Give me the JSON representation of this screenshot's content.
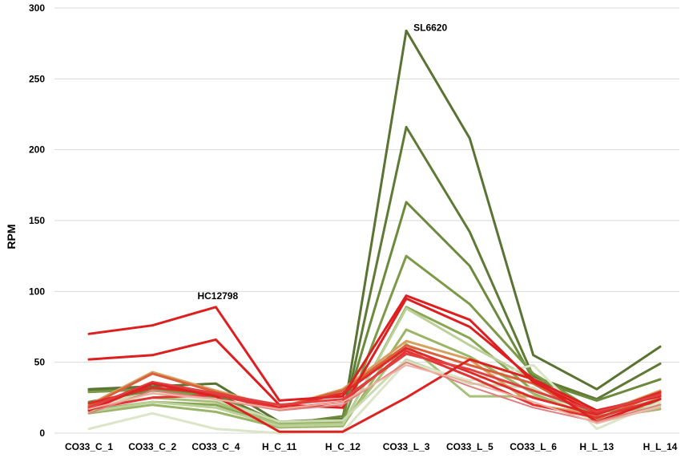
{
  "chart_data": {
    "type": "line",
    "ylabel": "RPM",
    "xlabel": "",
    "ylim": [
      0,
      300
    ],
    "yticks": [
      0,
      50,
      100,
      150,
      200,
      250,
      300
    ],
    "grid": true,
    "legend": "none",
    "categories": [
      "CO33_C_1",
      "CO33_C_2",
      "CO33_C_4",
      "H_C_11",
      "H_C_12",
      "CO33_L_3",
      "CO33_L_5",
      "CO33_L_6",
      "H_L_13",
      "H_L_14"
    ],
    "annotations": [
      {
        "text": "SL6620",
        "category": "CO33_L_3",
        "y": 284
      },
      {
        "text": "HC12798",
        "category": "CO33_C_4",
        "y": 89
      }
    ],
    "series": [
      {
        "color": "#5a7332",
        "width": 3,
        "values": [
          31,
          33,
          35,
          8,
          10,
          284,
          208,
          55,
          31,
          61
        ]
      },
      {
        "color": "#5f7a35",
        "width": 3,
        "values": [
          30,
          32,
          28,
          7,
          9,
          216,
          142,
          40,
          24,
          49
        ]
      },
      {
        "color": "#6b8a3c",
        "width": 3,
        "values": [
          22,
          30,
          27,
          6,
          12,
          163,
          118,
          38,
          23,
          38
        ]
      },
      {
        "color": "#7c9a48",
        "width": 3,
        "values": [
          29,
          31,
          25,
          8,
          8,
          125,
          91,
          42,
          15,
          28
        ]
      },
      {
        "color": "#8aa655",
        "width": 3,
        "values": [
          16,
          22,
          20,
          5,
          6,
          89,
          67,
          30,
          14,
          22
        ]
      },
      {
        "color": "#9bb567",
        "width": 3,
        "values": [
          14,
          20,
          15,
          4,
          5,
          73,
          54,
          28,
          10,
          17
        ]
      },
      {
        "color": "#a9c078",
        "width": 3,
        "values": [
          18,
          25,
          22,
          6,
          7,
          63,
          26,
          26,
          12,
          20
        ]
      },
      {
        "color": "#bcd09a",
        "width": 3,
        "values": [
          15,
          22,
          18,
          5,
          6,
          88,
          62,
          38,
          9,
          25
        ]
      },
      {
        "color": "#cbdab0",
        "width": 3,
        "values": [
          20,
          28,
          24,
          8,
          9,
          52,
          35,
          32,
          7,
          19
        ]
      },
      {
        "color": "#dbe5c8",
        "width": 3,
        "values": [
          3,
          14,
          3,
          0,
          1,
          50,
          37,
          48,
          3,
          22
        ]
      },
      {
        "color": "#d8a060",
        "width": 3,
        "values": [
          20,
          43,
          30,
          18,
          31,
          65,
          52,
          20,
          13,
          30
        ]
      },
      {
        "color": "#d9603a",
        "width": 3,
        "values": [
          19,
          42,
          29,
          18,
          30,
          62,
          48,
          35,
          10,
          28
        ]
      },
      {
        "color": "#dd1f1f",
        "width": 3,
        "values": [
          70,
          76,
          89,
          23,
          26,
          97,
          80,
          36,
          14,
          27
        ]
      },
      {
        "color": "#dd1f1f",
        "width": 3,
        "values": [
          52,
          55,
          66,
          20,
          18,
          95,
          75,
          38,
          16,
          26
        ]
      },
      {
        "color": "#e02a2a",
        "width": 3,
        "values": [
          21,
          32,
          28,
          18,
          28,
          60,
          43,
          25,
          13,
          29
        ]
      },
      {
        "color": "#e33535",
        "width": 3,
        "values": [
          17,
          25,
          27,
          17,
          22,
          58,
          40,
          20,
          11,
          24
        ]
      },
      {
        "color": "#e14040",
        "width": 3,
        "values": [
          18,
          36,
          28,
          20,
          24,
          56,
          45,
          30,
          15,
          27
        ]
      },
      {
        "color": "#dd2222",
        "width": 3,
        "values": [
          16,
          35,
          26,
          1,
          1,
          25,
          52,
          38,
          8,
          24
        ]
      },
      {
        "color": "#e08080",
        "width": 2,
        "values": [
          14,
          30,
          24,
          16,
          20,
          50,
          33,
          18,
          8,
          20
        ]
      },
      {
        "color": "#eeb0a0",
        "width": 2,
        "values": [
          17,
          28,
          24,
          17,
          22,
          48,
          36,
          22,
          7,
          18
        ]
      }
    ]
  }
}
